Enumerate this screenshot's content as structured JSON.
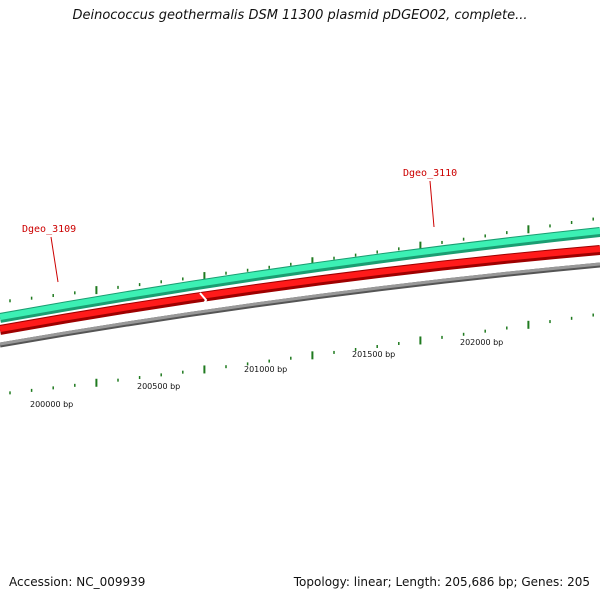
{
  "title": "Deinococcus geothermalis DSM 11300 plasmid pDGEO02, complete...",
  "footer": {
    "accession": "Accession: NC_009939",
    "summary": "Topology: linear; Length: 205,686 bp; Genes: 205"
  },
  "genes": [
    {
      "label": "Dgeo_3109",
      "color": "#cc0000"
    },
    {
      "label": "Dgeo_3110",
      "color": "#cc0000"
    }
  ],
  "ticks": [
    "200000 bp",
    "200500 bp",
    "201000 bp",
    "201500 bp",
    "202000 bp"
  ],
  "colors": {
    "forward_track": "#33e6aa",
    "reverse_track": "#ee1111",
    "backbone": "#888888",
    "tick_marks": "#1f7a1f"
  }
}
